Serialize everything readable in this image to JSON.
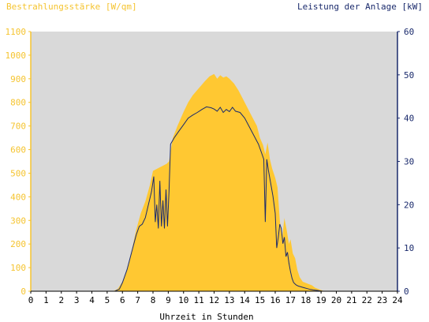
{
  "colors": {
    "plot_background": "#d9d9d9",
    "irradiance": "#ffc832",
    "power": "#1a2a6c",
    "left_axis": "#f5c430",
    "right_axis": "#1a2a6c"
  },
  "chart_data": {
    "type": "area",
    "left_axis_title": "Bestrahlungsstärke [W/qm]",
    "right_axis_title": "Leistung der Anlage [kW]",
    "xlabel": "Uhrzeit in Stunden",
    "xlim": [
      0,
      24
    ],
    "x_ticks": [
      "0",
      "1",
      "2",
      "3",
      "4",
      "5",
      "6",
      "7",
      "8",
      "9",
      "10",
      "11",
      "12",
      "13",
      "14",
      "15",
      "16",
      "17",
      "18",
      "19",
      "20",
      "21",
      "22",
      "23",
      "24"
    ],
    "y_left_lim": [
      0,
      1100
    ],
    "y_left_ticks": [
      "0",
      "100",
      "200",
      "300",
      "400",
      "500",
      "600",
      "700",
      "800",
      "900",
      "1000",
      "1100"
    ],
    "y_right_lim": [
      0,
      60
    ],
    "y_right_ticks": [
      "0",
      "10",
      "20",
      "30",
      "40",
      "50",
      "60"
    ],
    "grid": false,
    "series": [
      {
        "name": "Bestrahlungsstärke [W/qm]",
        "axis": "left",
        "style": "filled-area",
        "x": [
          0,
          5.4,
          5.7,
          6.0,
          6.3,
          6.6,
          6.9,
          7.2,
          7.5,
          7.8,
          8.0,
          8.3,
          8.6,
          8.9,
          9.05,
          9.3,
          9.6,
          10.0,
          10.3,
          10.6,
          11.0,
          11.4,
          11.7,
          12.0,
          12.2,
          12.4,
          12.6,
          12.8,
          13.0,
          13.3,
          13.6,
          14.0,
          14.4,
          14.8,
          15.0,
          15.2,
          15.35,
          15.5,
          15.65,
          15.8,
          16.0,
          16.15,
          16.3,
          16.45,
          16.6,
          16.75,
          16.9,
          17.0,
          17.15,
          17.3,
          17.45,
          17.6,
          17.8,
          18.0,
          18.2,
          18.4,
          18.6,
          18.8,
          19.0,
          19.2,
          24
        ],
        "y": [
          0,
          0,
          10,
          40,
          90,
          170,
          260,
          330,
          380,
          450,
          510,
          520,
          530,
          540,
          550,
          650,
          700,
          760,
          800,
          830,
          860,
          890,
          910,
          920,
          900,
          915,
          905,
          910,
          900,
          880,
          850,
          800,
          750,
          700,
          650,
          620,
          580,
          630,
          560,
          520,
          480,
          440,
          300,
          220,
          310,
          260,
          200,
          220,
          160,
          140,
          90,
          60,
          40,
          35,
          30,
          25,
          15,
          10,
          5,
          0,
          0
        ]
      },
      {
        "name": "Leistung der Anlage [kW]",
        "axis": "right",
        "style": "line",
        "x": [
          0,
          5.5,
          5.8,
          6.0,
          6.3,
          6.6,
          6.9,
          7.1,
          7.3,
          7.5,
          7.7,
          7.9,
          8.05,
          8.15,
          8.25,
          8.35,
          8.45,
          8.55,
          8.65,
          8.75,
          8.85,
          8.95,
          9.05,
          9.15,
          9.4,
          9.7,
          10.0,
          10.3,
          10.6,
          10.9,
          11.2,
          11.5,
          11.8,
          12.0,
          12.2,
          12.4,
          12.6,
          12.8,
          13.0,
          13.2,
          13.4,
          13.7,
          14.0,
          14.3,
          14.6,
          14.9,
          15.1,
          15.25,
          15.35,
          15.45,
          15.55,
          15.7,
          15.85,
          16.0,
          16.1,
          16.2,
          16.3,
          16.4,
          16.5,
          16.6,
          16.7,
          16.8,
          16.9,
          17.0,
          17.1,
          17.2,
          17.35,
          17.5,
          17.7,
          17.9,
          18.1,
          18.3,
          18.5,
          18.7,
          18.9,
          19.1,
          24
        ],
        "y": [
          0,
          0,
          0.5,
          2,
          5,
          9,
          13,
          15,
          15.5,
          17,
          20,
          23,
          26.5,
          16,
          20,
          14.5,
          25.5,
          15,
          21,
          14.5,
          23.5,
          15,
          23,
          34,
          35.5,
          37,
          38.5,
          40,
          40.7,
          41.3,
          42,
          42.6,
          42.4,
          42.1,
          41.6,
          42.5,
          41.3,
          42,
          41.5,
          42.5,
          41.6,
          41.3,
          40,
          38,
          36,
          34,
          32,
          30.5,
          16,
          30.5,
          28,
          25,
          22,
          18,
          10,
          12.5,
          15.5,
          14.5,
          11,
          12.5,
          8,
          9,
          6.5,
          4.5,
          3,
          2,
          1.5,
          1.2,
          1,
          0.8,
          0.6,
          0.4,
          0.3,
          0.2,
          0.1,
          0,
          0
        ]
      }
    ]
  }
}
